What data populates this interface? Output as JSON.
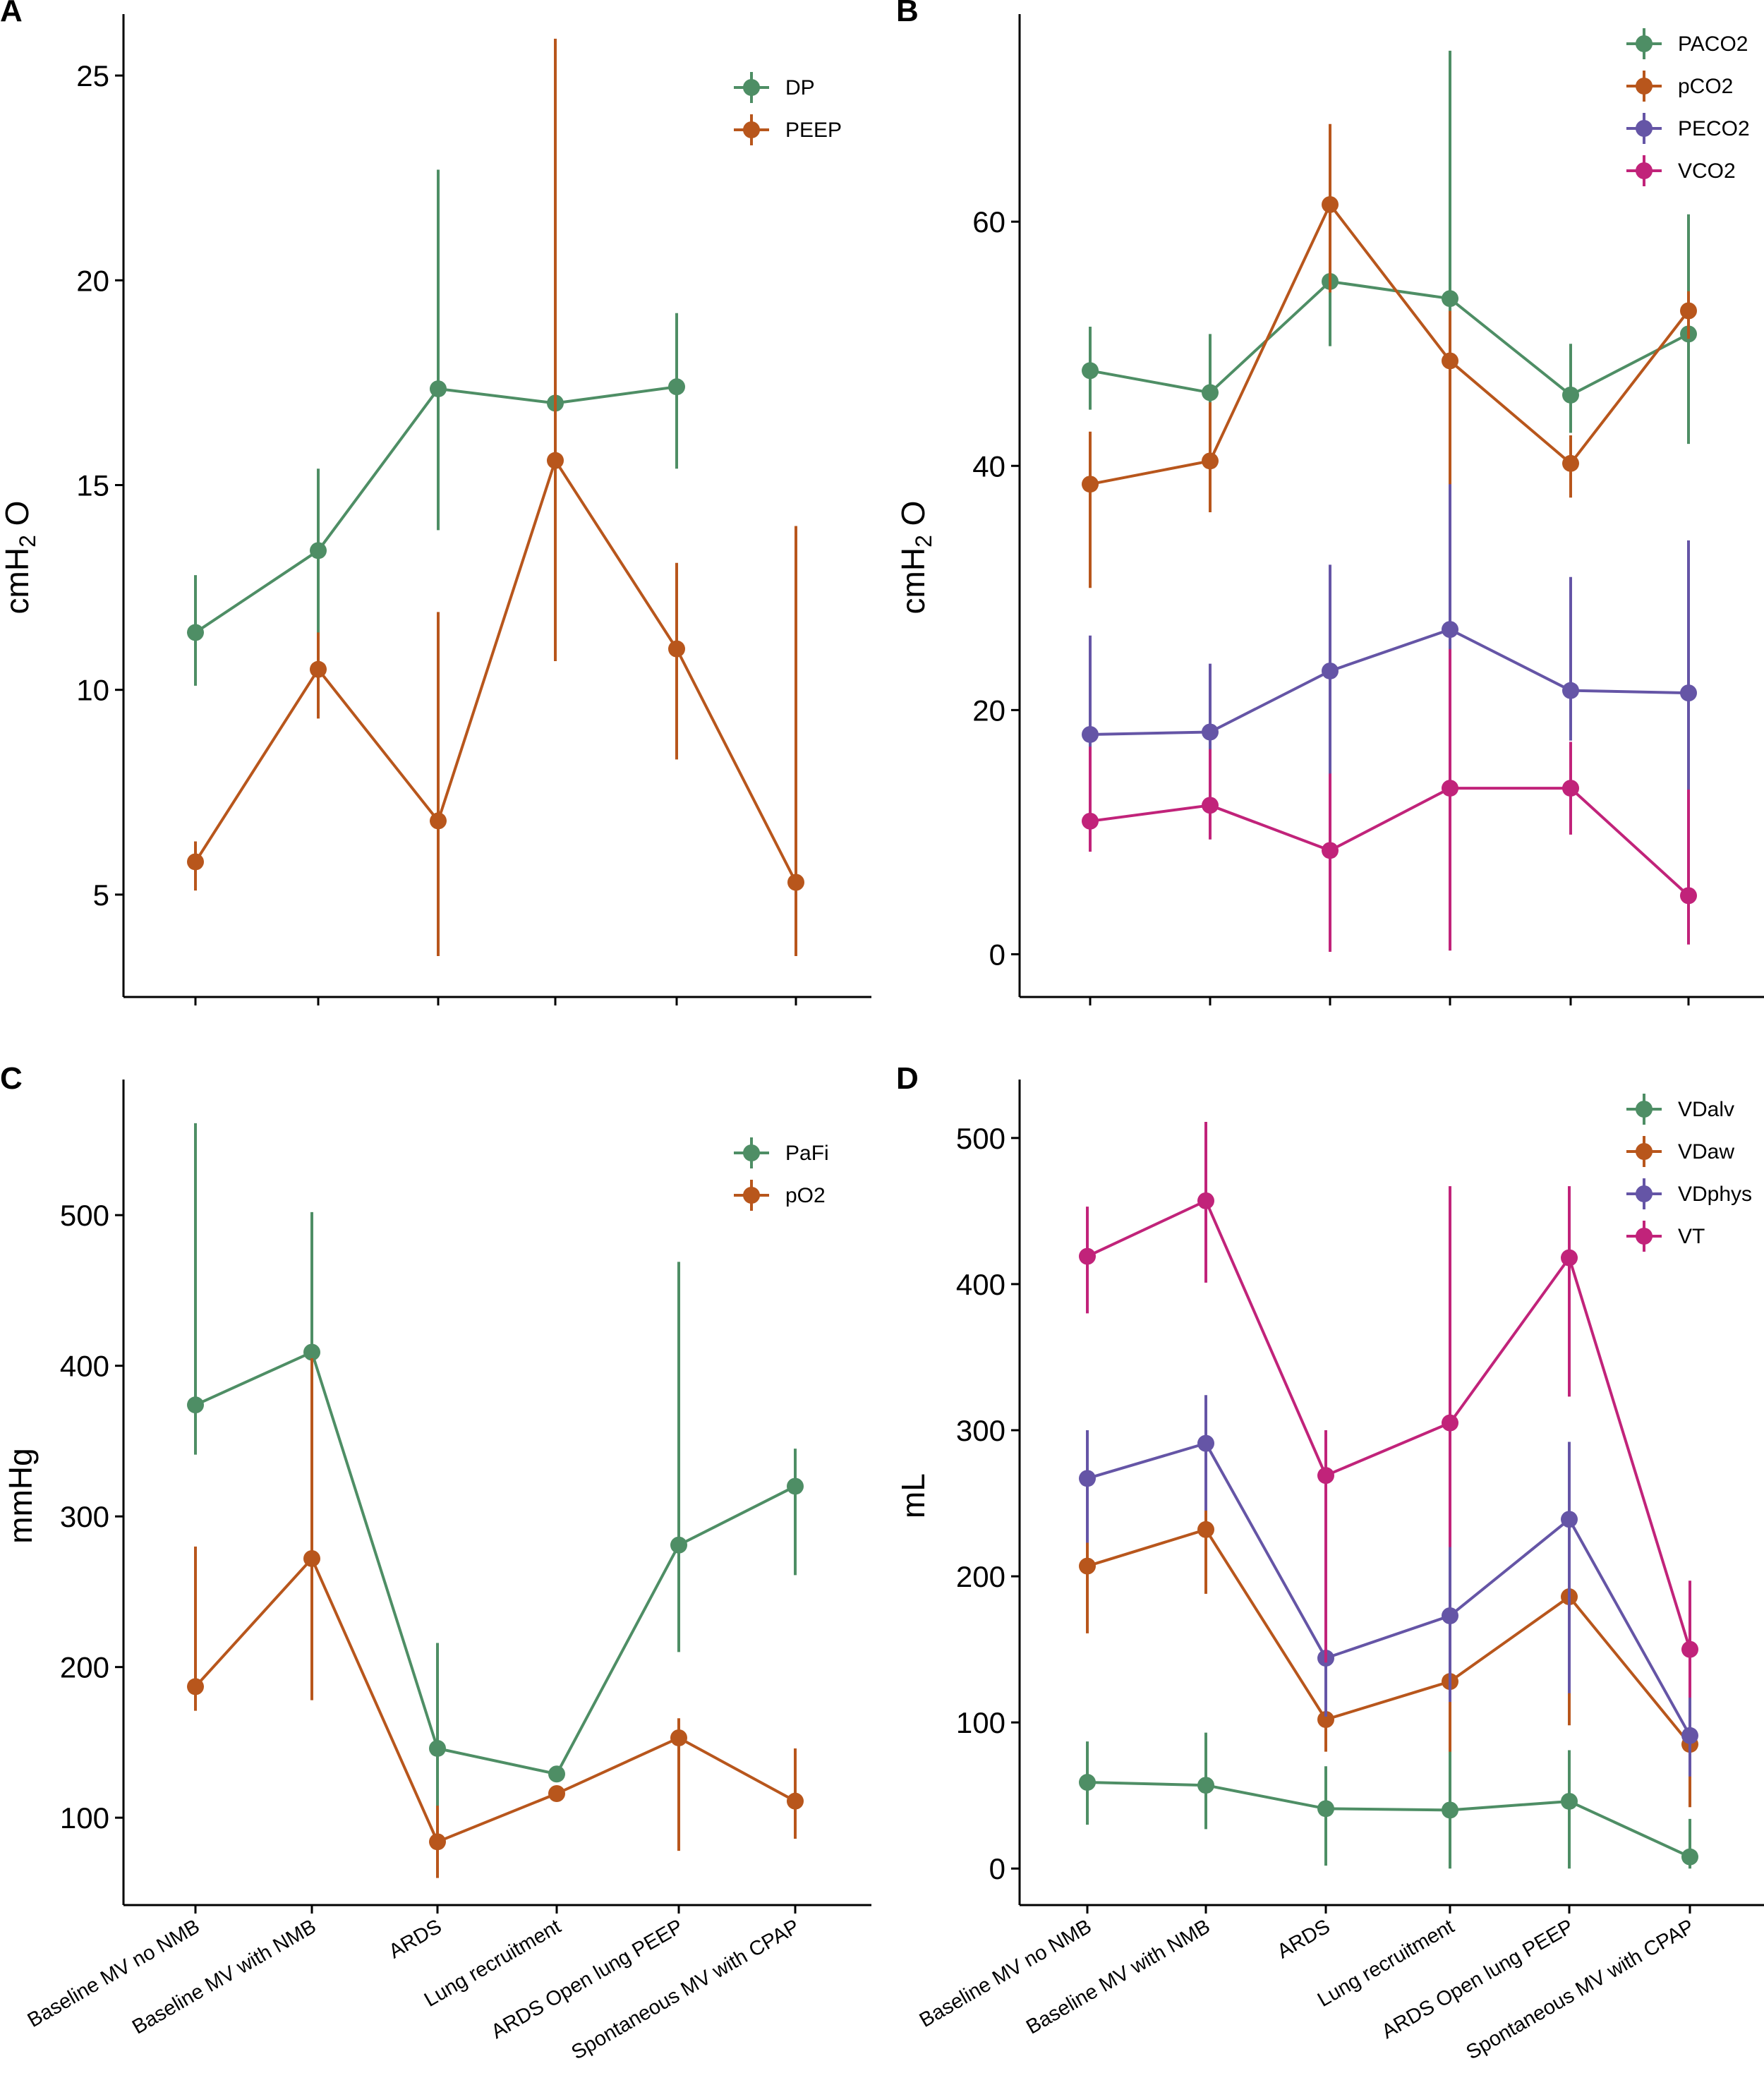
{
  "colors": {
    "green": "#4E8E65",
    "orange": "#B8561C",
    "purple": "#6555A6",
    "magenta": "#C1237A"
  },
  "chart_data": [
    {
      "panel_label": "A",
      "type": "line",
      "ylabel": "cmH2O",
      "ylabel_parts": {
        "main": "cmH",
        "sub": "2",
        "tail": " O"
      },
      "ylim": [
        2.5,
        26.5
      ],
      "yticks": [
        5,
        10,
        15,
        20,
        25
      ],
      "categories": [
        "Baseline MV no NMB",
        "Baseline MV with NMB",
        "ARDS",
        "Lung recruitment",
        "ARDS Open lung PEEP",
        "Spontaneous MV with CPAP"
      ],
      "show_category_labels": false,
      "legend_position": "top-right",
      "series": [
        {
          "name": "DP",
          "color": "#4E8E65",
          "values": [
            11.4,
            13.4,
            17.35,
            17.0,
            17.4,
            null
          ],
          "low": [
            10.1,
            11.2,
            13.9,
            13.8,
            15.4,
            null
          ],
          "high": [
            12.8,
            15.4,
            22.7,
            23.1,
            19.2,
            null
          ]
        },
        {
          "name": "PEEP",
          "color": "#B8561C",
          "values": [
            5.8,
            10.5,
            6.8,
            15.6,
            11.0,
            5.3
          ],
          "low": [
            5.1,
            9.3,
            3.5,
            10.7,
            8.3,
            3.5
          ],
          "high": [
            6.3,
            11.4,
            11.9,
            25.9,
            13.1,
            14.0
          ]
        }
      ]
    },
    {
      "panel_label": "B",
      "type": "line",
      "ylabel": "cmH2O",
      "ylabel_parts": {
        "main": "cmH",
        "sub": "2",
        "tail": " O"
      },
      "ylim": [
        -3.5,
        77
      ],
      "yticks": [
        0,
        20,
        40,
        60
      ],
      "categories": [
        "Baseline MV no NMB",
        "Baseline MV with NMB",
        "ARDS",
        "Lung recruitment",
        "ARDS Open lung PEEP",
        "Spontaneous MV with CPAP"
      ],
      "show_category_labels": false,
      "legend_position": "top-right",
      "series": [
        {
          "name": "PACO2",
          "color": "#4E8E65",
          "values": [
            47.8,
            46.0,
            55.1,
            53.7,
            45.8,
            50.8
          ],
          "low": [
            44.6,
            43.0,
            49.8,
            30.6,
            42.7,
            41.8
          ],
          "high": [
            51.4,
            50.8,
            67.4,
            74.0,
            50.0,
            60.6
          ]
        },
        {
          "name": "pCO2",
          "color": "#B8561C",
          "values": [
            38.5,
            40.4,
            61.4,
            48.6,
            40.2,
            52.7
          ],
          "low": [
            30.0,
            36.2,
            54.2,
            35.3,
            37.4,
            50.4
          ],
          "high": [
            42.8,
            45.2,
            68.0,
            52.7,
            42.5,
            54.3
          ]
        },
        {
          "name": "PECO2",
          "color": "#6555A6",
          "values": [
            18.0,
            18.2,
            23.2,
            26.6,
            21.6,
            21.4
          ],
          "low": [
            15.0,
            15.3,
            1.1,
            0.5,
            17.5,
            5.1
          ],
          "high": [
            26.1,
            23.8,
            31.9,
            38.5,
            30.9,
            33.9
          ]
        },
        {
          "name": "VCO2",
          "color": "#C1237A",
          "values": [
            10.9,
            12.2,
            8.5,
            13.6,
            13.6,
            4.8
          ],
          "low": [
            8.4,
            9.4,
            0.2,
            0.3,
            9.8,
            0.8
          ],
          "high": [
            17.0,
            16.8,
            14.8,
            25.0,
            17.4,
            13.5
          ]
        }
      ]
    },
    {
      "panel_label": "C",
      "type": "line",
      "ylabel": "mmHg",
      "ylim": [
        42,
        590
      ],
      "yticks": [
        100,
        200,
        300,
        400,
        500
      ],
      "categories": [
        "Baseline MV no NMB",
        "Baseline MV with NMB",
        "ARDS",
        "Lung recruitment",
        "ARDS Open lung PEEP",
        "Spontaneous MV with CPAP"
      ],
      "show_category_labels": true,
      "legend_position": "top-right",
      "series": [
        {
          "name": "PaFi",
          "color": "#4E8E65",
          "values": [
            374,
            409,
            146,
            129,
            281,
            320
          ],
          "low": [
            341,
            356,
            85,
            124,
            210,
            261
          ],
          "high": [
            561,
            502,
            216,
            134,
            469,
            345
          ]
        },
        {
          "name": "pO2",
          "color": "#B8561C",
          "values": [
            187,
            272,
            84,
            116,
            153,
            111
          ],
          "low": [
            171,
            178,
            60,
            112,
            78,
            86
          ],
          "high": [
            280,
            405,
            108,
            121,
            166,
            146
          ]
        }
      ]
    },
    {
      "panel_label": "D",
      "type": "line",
      "ylabel": "mL",
      "ylim": [
        -25,
        540
      ],
      "yticks": [
        0,
        100,
        200,
        300,
        400,
        500
      ],
      "categories": [
        "Baseline MV no NMB",
        "Baseline MV with NMB",
        "ARDS",
        "Lung recruitment",
        "ARDS Open lung PEEP",
        "Spontaneous MV with CPAP"
      ],
      "show_category_labels": true,
      "legend_position": "top-right",
      "series": [
        {
          "name": "VDalv",
          "color": "#4E8E65",
          "values": [
            59,
            57,
            41,
            40,
            46,
            8
          ],
          "low": [
            30,
            27,
            2,
            0,
            0,
            0
          ],
          "high": [
            87,
            93,
            70,
            93,
            81,
            34
          ]
        },
        {
          "name": "VDaw",
          "color": "#B8561C",
          "values": [
            207,
            232,
            102,
            128,
            186,
            85
          ],
          "low": [
            161,
            188,
            80,
            80,
            98,
            42
          ],
          "high": [
            238,
            268,
            127,
            213,
            235,
            129
          ]
        },
        {
          "name": "VDphys",
          "color": "#6555A6",
          "values": [
            267,
            291,
            144,
            173,
            239,
            91
          ],
          "low": [
            223,
            245,
            104,
            114,
            120,
            63
          ],
          "high": [
            300,
            324,
            178,
            223,
            292,
            118
          ]
        },
        {
          "name": "VT",
          "color": "#C1237A",
          "values": [
            419,
            457,
            269,
            305,
            418,
            150
          ],
          "low": [
            380,
            401,
            141,
            220,
            323,
            117
          ],
          "high": [
            453,
            511,
            300,
            467,
            467,
            197
          ]
        }
      ]
    }
  ]
}
